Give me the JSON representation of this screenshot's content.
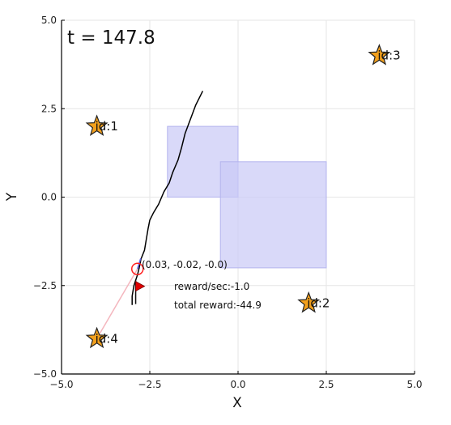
{
  "chart_data": {
    "type": "scatter",
    "title": "",
    "time_label": "t = 147.8",
    "xlabel": "X",
    "ylabel": "Y",
    "xlim": [
      -5.0,
      5.0
    ],
    "ylim": [
      -5.0,
      5.0
    ],
    "xticks": [
      -5.0,
      -2.5,
      0.0,
      2.5,
      5.0
    ],
    "yticks": [
      -5.0,
      -2.5,
      0.0,
      2.5,
      5.0
    ],
    "xtick_labels": [
      "−5.0",
      "−2.5",
      "0.0",
      "2.5",
      "5.0"
    ],
    "ytick_labels": [
      "−5.0",
      "−2.5",
      "0.0",
      "2.5",
      "5.0"
    ],
    "grid": true,
    "colors": {
      "obstacle": "#c9c9f7",
      "landmark": "#f2a01d",
      "trajectory": "#000000",
      "robot": "#ff2020",
      "flag": "#e00000",
      "link": "#f4b6be",
      "heading": "#5a5ae6"
    },
    "obstacles": [
      {
        "x": [
          -2.0,
          0.0
        ],
        "y": [
          0.0,
          2.0
        ]
      },
      {
        "x": [
          -0.5,
          2.5
        ],
        "y": [
          -2.0,
          1.0
        ]
      }
    ],
    "landmarks": [
      {
        "label": "id:1",
        "x": -4.0,
        "y": 2.0
      },
      {
        "label": "id:2",
        "x": 2.0,
        "y": -3.0
      },
      {
        "label": "id:3",
        "x": 4.0,
        "y": 4.0
      },
      {
        "label": "id:4",
        "x": -4.0,
        "y": -4.0
      }
    ],
    "trajectory": [
      [
        -1.0,
        3.0
      ],
      [
        -1.2,
        2.6
      ],
      [
        -1.35,
        2.2
      ],
      [
        -1.5,
        1.8
      ],
      [
        -1.6,
        1.4
      ],
      [
        -1.7,
        1.05
      ],
      [
        -1.85,
        0.7
      ],
      [
        -1.95,
        0.4
      ],
      [
        -2.1,
        0.15
      ],
      [
        -2.25,
        -0.2
      ],
      [
        -2.4,
        -0.45
      ],
      [
        -2.5,
        -0.65
      ],
      [
        -2.55,
        -0.9
      ],
      [
        -2.6,
        -1.2
      ],
      [
        -2.65,
        -1.5
      ],
      [
        -2.75,
        -1.75
      ],
      [
        -2.8,
        -2.0
      ],
      [
        -2.85,
        -2.2
      ],
      [
        -2.95,
        -2.5
      ],
      [
        -3.0,
        -2.8
      ],
      [
        -3.0,
        -3.05
      ]
    ],
    "robot": {
      "x": -2.85,
      "y": -2.03,
      "pose_label": "(0.03, -0.02, -0.0)"
    },
    "flag": {
      "x": -2.9,
      "y": -2.52
    },
    "link_target": "id:4",
    "reward_label": "reward/sec:-1.0",
    "total_reward_label": "total reward:-44.9"
  }
}
